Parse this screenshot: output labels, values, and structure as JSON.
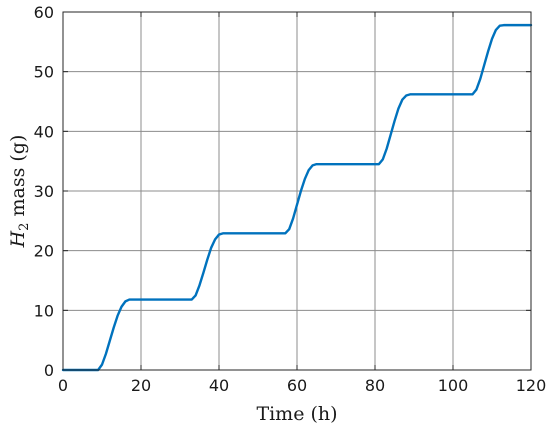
{
  "chart_data": {
    "type": "line",
    "title": "",
    "xlabel": "Time (h)",
    "ylabel_italic": "H",
    "ylabel_subscript": "2",
    "ylabel_rest": " mass (g)",
    "xlim": [
      0,
      120
    ],
    "ylim": [
      0,
      60
    ],
    "xticks": [
      "0",
      "20",
      "40",
      "60",
      "80",
      "100",
      "120"
    ],
    "yticks": [
      "0",
      "10",
      "20",
      "30",
      "40",
      "50",
      "60"
    ],
    "grid": true,
    "legend": "none",
    "line_color": "#0072BD",
    "series": [
      {
        "x": [
          0,
          9,
          10,
          11,
          12,
          13,
          14,
          15,
          16,
          17,
          18,
          33,
          34,
          35,
          36,
          37,
          38,
          39,
          40,
          41,
          42,
          57,
          58,
          59,
          60,
          61,
          62,
          63,
          64,
          65,
          66,
          81,
          82,
          83,
          84,
          85,
          86,
          87,
          88,
          89,
          90,
          105,
          106,
          107,
          108,
          109,
          110,
          111,
          112,
          113,
          114,
          120
        ],
        "y": [
          0,
          0,
          0.9,
          2.7,
          4.9,
          7.1,
          9.1,
          10.6,
          11.5,
          11.8,
          11.8,
          11.8,
          12.5,
          14.2,
          16.3,
          18.5,
          20.5,
          21.9,
          22.7,
          22.9,
          22.9,
          22.9,
          23.6,
          25.4,
          27.7,
          30.0,
          32.0,
          33.5,
          34.3,
          34.5,
          34.5,
          34.5,
          35.3,
          37.1,
          39.4,
          41.7,
          43.8,
          45.3,
          46.0,
          46.2,
          46.2,
          46.2,
          47.0,
          48.8,
          51.1,
          53.4,
          55.5,
          57.0,
          57.7,
          57.8,
          57.8,
          57.8
        ]
      }
    ]
  }
}
